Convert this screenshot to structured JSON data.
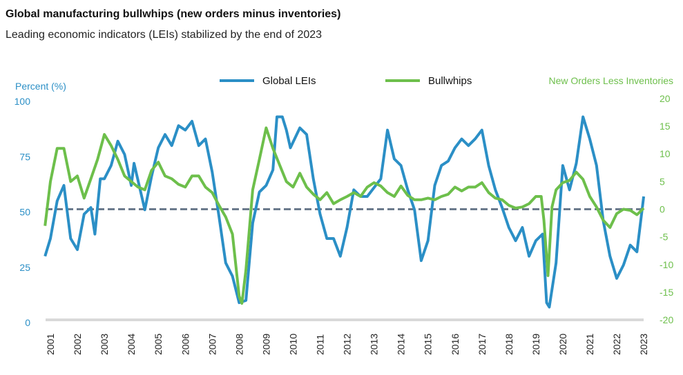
{
  "title": "Global manufacturing bullwhips (new orders minus inventories)",
  "subtitle": "Leading economic indicators (LEIs) stabilized by the end of 2023",
  "chart_data": {
    "type": "line",
    "left_axis": {
      "label": "Percent (%)",
      "ticks": [
        0,
        25,
        50,
        75,
        100
      ],
      "range": [
        0,
        100
      ],
      "color": "#2b8fc6"
    },
    "right_axis": {
      "label": "New Orders Less Inventories",
      "ticks": [
        -20,
        -15,
        -10,
        -5,
        0,
        5,
        10,
        15,
        20
      ],
      "range": [
        -20,
        20
      ],
      "color": "#6dbf4b"
    },
    "x_ticks": [
      "2001",
      "2002",
      "2003",
      "2004",
      "2005",
      "2006",
      "2007",
      "2008",
      "2009",
      "2010",
      "2011",
      "2012",
      "2013",
      "2014",
      "2015",
      "2016",
      "2017",
      "2018",
      "2019",
      "2020",
      "2021",
      "2022",
      "2023"
    ],
    "reference_line": {
      "right_axis_value": 0,
      "style": "dashed",
      "color": "#6b7a8c"
    },
    "legend": {
      "placement": "top-center"
    },
    "series": [
      {
        "name": "Global LEIs",
        "axis": "left",
        "color": "#2b8fc6",
        "x": [
          2000.8,
          2001,
          2001.25,
          2001.5,
          2001.75,
          2002,
          2002.25,
          2002.5,
          2002.65,
          2002.85,
          2003,
          2003.25,
          2003.5,
          2003.75,
          2004,
          2004.1,
          2004.5,
          2004.75,
          2005,
          2005.25,
          2005.5,
          2005.75,
          2006,
          2006.25,
          2006.5,
          2006.75,
          2007,
          2007.25,
          2007.5,
          2007.75,
          2008,
          2008.25,
          2008.5,
          2008.75,
          2009,
          2009.25,
          2009.4,
          2009.6,
          2009.75,
          2009.9,
          2010.25,
          2010.5,
          2010.75,
          2011,
          2011.25,
          2011.5,
          2011.75,
          2012,
          2012.25,
          2012.5,
          2012.75,
          2013,
          2013.25,
          2013.5,
          2013.75,
          2014,
          2014.25,
          2014.5,
          2014.75,
          2015,
          2015.25,
          2015.5,
          2015.75,
          2016,
          2016.25,
          2016.5,
          2016.75,
          2017,
          2017.25,
          2017.5,
          2017.75,
          2018,
          2018.25,
          2018.5,
          2018.75,
          2019,
          2019.25,
          2019.4,
          2019.5,
          2019.75,
          2020,
          2020.25,
          2020.5,
          2020.75,
          2021,
          2021.25,
          2021.5,
          2021.75,
          2022,
          2022.25,
          2022.5,
          2022.75,
          2023
        ],
        "values": [
          30,
          38,
          55,
          62,
          38,
          33,
          49,
          52,
          40,
          65,
          65,
          71,
          82,
          76,
          62,
          72,
          51,
          66,
          79,
          85,
          80,
          89,
          87,
          91,
          80,
          83,
          68,
          48,
          27,
          21,
          9,
          10,
          45,
          59,
          62,
          69,
          93,
          93,
          87,
          79,
          88,
          85,
          65,
          49,
          38,
          38,
          30,
          43,
          60,
          57,
          57,
          61,
          65,
          87,
          74,
          71,
          60,
          51,
          28,
          37,
          62,
          71,
          73,
          79,
          83,
          80,
          83,
          87,
          71,
          60,
          52,
          43,
          37,
          43,
          30,
          37,
          40,
          9,
          7,
          27,
          71,
          60,
          72,
          93,
          83,
          71,
          46,
          30,
          20,
          26,
          35,
          32,
          57
        ]
      },
      {
        "name": "Bullwhips",
        "axis": "right",
        "color": "#6dbf4b",
        "x": [
          2000.8,
          2001,
          2001.25,
          2001.5,
          2001.75,
          2002,
          2002.25,
          2002.5,
          2002.75,
          2003,
          2003.25,
          2003.5,
          2003.75,
          2004,
          2004.25,
          2004.5,
          2004.75,
          2005,
          2005.25,
          2005.5,
          2005.75,
          2006,
          2006.25,
          2006.5,
          2006.75,
          2007,
          2007.25,
          2007.5,
          2007.75,
          2008,
          2008.1,
          2008.25,
          2008.5,
          2008.75,
          2009,
          2009.25,
          2009.5,
          2009.75,
          2010,
          2010.25,
          2010.5,
          2010.75,
          2011,
          2011.25,
          2011.5,
          2011.75,
          2012,
          2012.25,
          2012.5,
          2012.75,
          2013,
          2013.25,
          2013.5,
          2013.75,
          2014,
          2014.25,
          2014.5,
          2014.75,
          2015,
          2015.25,
          2015.5,
          2015.75,
          2016,
          2016.25,
          2016.5,
          2016.75,
          2017,
          2017.25,
          2017.5,
          2017.75,
          2018,
          2018.25,
          2018.5,
          2018.75,
          2019,
          2019.2,
          2019.3,
          2019.45,
          2019.6,
          2019.75,
          2020,
          2020.25,
          2020.5,
          2020.75,
          2021,
          2021.25,
          2021.5,
          2021.75,
          2022,
          2022.25,
          2022.5,
          2022.75,
          2023
        ],
        "values": [
          -3,
          5,
          11,
          11,
          5,
          6,
          2,
          5.5,
          9,
          13.5,
          11.5,
          9,
          6,
          5,
          4,
          3.5,
          7,
          8.5,
          6,
          5.5,
          4.5,
          4,
          6,
          6,
          4,
          3,
          0.7,
          -1.4,
          -4.5,
          -15.7,
          -17,
          -11,
          3.5,
          9,
          14.7,
          11,
          8,
          5,
          4,
          6.5,
          4,
          2.7,
          1.7,
          3,
          1,
          1.7,
          2.3,
          3,
          2.3,
          4,
          4.8,
          4.2,
          3,
          2.3,
          4.2,
          2.5,
          1.7,
          1.7,
          2,
          1.7,
          2.3,
          2.7,
          4,
          3.3,
          4,
          4,
          4.8,
          3,
          2,
          1.7,
          0.7,
          0.2,
          0.4,
          1,
          2.3,
          2.3,
          -2,
          -12,
          0.4,
          3.5,
          4.8,
          5.2,
          6.7,
          5.4,
          2.3,
          0.4,
          -2,
          -3.3,
          -0.8,
          0,
          -0.2,
          -1,
          0.2
        ]
      }
    ]
  }
}
